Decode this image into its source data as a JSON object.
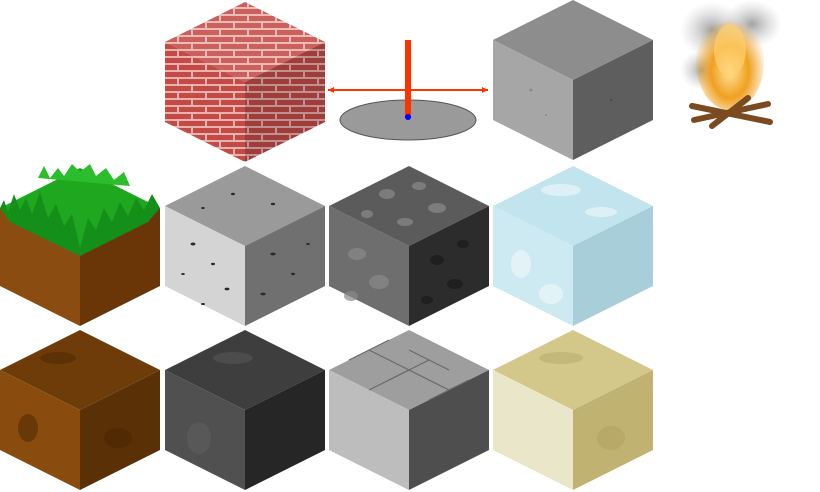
{
  "editor": {
    "tile_palette": [
      {
        "id": "brick",
        "icon": "brick-block-icon",
        "top": "#c95552",
        "left": "#c44a46",
        "right": "#a83a37",
        "mortar": "#e8b2ae"
      },
      {
        "id": "concrete",
        "icon": "concrete-block-icon",
        "top": "#8d8d8d",
        "left": "#a6a6a6",
        "right": "#5e5e5e"
      },
      {
        "id": "grass",
        "icon": "grass-dirt-block-icon",
        "top": "#1fa81f",
        "left": "#8a4c10",
        "right": "#6a3608"
      },
      {
        "id": "speckled-stone",
        "icon": "speckled-stone-block-icon",
        "top": "#9a9a9a",
        "left": "#d4d4d4",
        "right": "#707070"
      },
      {
        "id": "cobblestone",
        "icon": "cobblestone-block-icon",
        "top": "#5b5b5b",
        "left": "#6e6e6e",
        "right": "#2c2c2c"
      },
      {
        "id": "ice",
        "icon": "ice-block-icon",
        "top": "#c2e4ee",
        "left": "#cde9f2",
        "right": "#a8ced9"
      },
      {
        "id": "dirt",
        "icon": "dirt-block-icon",
        "top": "#6e3c08",
        "left": "#8a4c0e",
        "right": "#5a3006"
      },
      {
        "id": "dark-stone",
        "icon": "dark-stone-block-icon",
        "top": "#3e3e3e",
        "left": "#505050",
        "right": "#262626"
      },
      {
        "id": "stone-slab",
        "icon": "stone-slab-block-icon",
        "top": "#9e9e9e",
        "left": "#bdbdbd",
        "right": "#4e4e4e"
      },
      {
        "id": "sand",
        "icon": "sand-block-icon",
        "top": "#d3c88a",
        "left": "#e9e6c9",
        "right": "#c0b270"
      }
    ],
    "gizmo": {
      "icon": "transform-gizmo-icon",
      "axis_color": "#ff3300",
      "handle_color": "#0000ff",
      "disc_fill": "#9a9a9a"
    },
    "campfire": {
      "icon": "campfire-icon",
      "flame_color": "#f0a020",
      "smoke_color": "#9a9a9a"
    }
  }
}
